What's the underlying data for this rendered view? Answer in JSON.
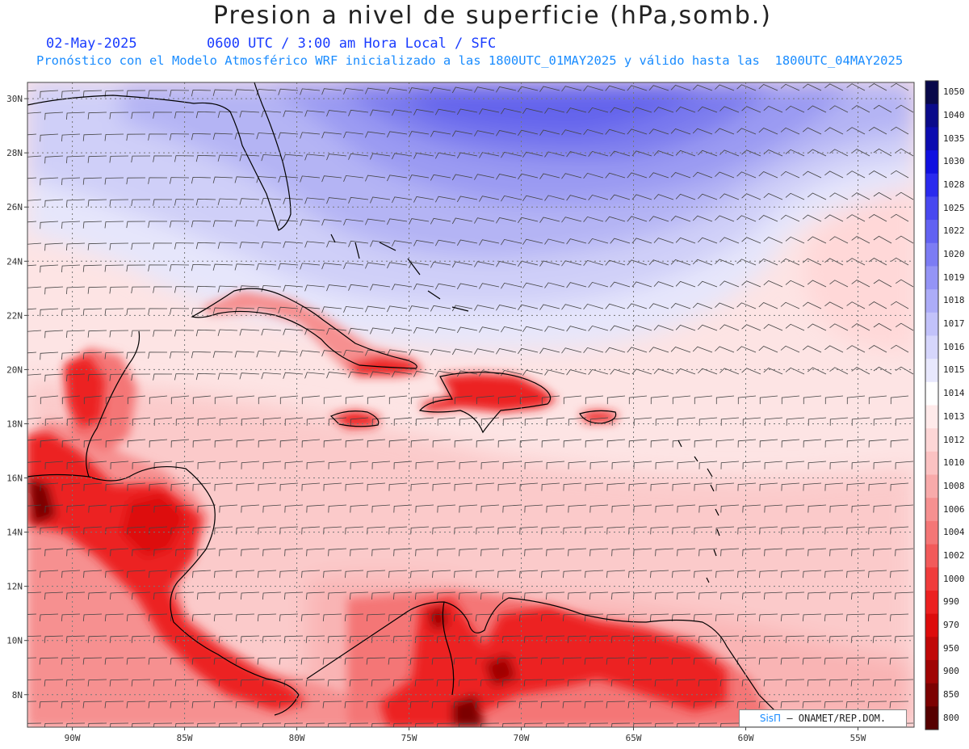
{
  "title": "Presion a nivel de superficie (hPa,somb.)",
  "date": "02-May-2025",
  "time_info": "0600 UTC / 3:00 am Hora Local / SFC",
  "model_info": "Pronóstico con el Modelo Atmosférico WRF inicializado a las 1800UTC_01MAY2025 y válido hasta las  1800UTC_04MAY2025",
  "credit": {
    "brand": "SisΠ",
    "org": "– ONAMET/REP.DOM."
  },
  "lat_labels": [
    "30N",
    "28N",
    "26N",
    "24N",
    "22N",
    "20N",
    "18N",
    "16N",
    "14N",
    "12N",
    "10N",
    "8N"
  ],
  "lon_labels": [
    "90W",
    "85W",
    "80W",
    "75W",
    "70W",
    "65W",
    "60W",
    "55W"
  ],
  "colorbar": {
    "labels": [
      "1050",
      "1040",
      "1035",
      "1030",
      "1028",
      "1025",
      "1022",
      "1020",
      "1019",
      "1018",
      "1017",
      "1016",
      "1015",
      "1014",
      "1013",
      "1012",
      "1010",
      "1008",
      "1006",
      "1004",
      "1002",
      "1000",
      "990",
      "970",
      "950",
      "900",
      "850",
      "800"
    ],
    "colors": [
      "#08084a",
      "#0a0a8a",
      "#0c0cb0",
      "#1010e0",
      "#2a2aee",
      "#4848f0",
      "#6262f2",
      "#7c7cf4",
      "#9494f6",
      "#acacf8",
      "#c2c2fa",
      "#d6d6fc",
      "#e8e8fd",
      "#ffffff",
      "#ffeaea",
      "#fdd6d6",
      "#fbc2c2",
      "#f8aaaa",
      "#f69090",
      "#f47676",
      "#f25a5a",
      "#f03c3c",
      "#ec2020",
      "#dd0c0c",
      "#c00808",
      "#a00404",
      "#7c0202",
      "#560000"
    ]
  },
  "map": {
    "lon_range": [
      -92,
      -52.5
    ],
    "lat_range": [
      6.8,
      30.6
    ],
    "wind_barbs": "shown",
    "grid": "dotted"
  }
}
